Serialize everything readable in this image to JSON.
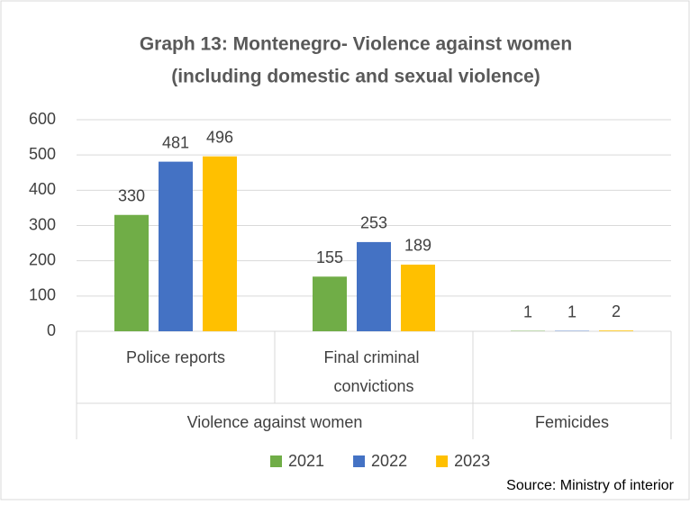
{
  "chart_data": {
    "type": "bar",
    "title": [
      "Graph 13: Montenegro- Violence against women",
      "(including domestic and sexual violence)"
    ],
    "categories": [
      "Police reports",
      "Final criminal convictions",
      null
    ],
    "groups": [
      "Violence against women",
      "Violence against women",
      "Femicides"
    ],
    "series": [
      {
        "name": "2021",
        "color": "#70ad47",
        "values": [
          330,
          155,
          1
        ]
      },
      {
        "name": "2022",
        "color": "#4472c4",
        "values": [
          481,
          253,
          1
        ]
      },
      {
        "name": "2023",
        "color": "#ffc000",
        "values": [
          496,
          189,
          2
        ]
      }
    ],
    "ylim": [
      0,
      600
    ],
    "yticks": [
      0,
      100,
      200,
      300,
      400,
      500,
      600
    ],
    "grid": true,
    "legend": "bottom",
    "source": "Source: Ministry of interior"
  }
}
